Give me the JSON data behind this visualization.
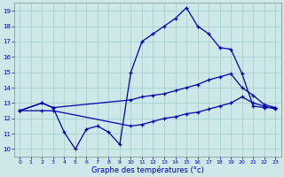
{
  "xlabel": "Graphe des températures (°c)",
  "xlim": [
    -0.5,
    23.5
  ],
  "ylim": [
    9.5,
    19.5
  ],
  "xticks": [
    0,
    1,
    2,
    3,
    4,
    5,
    6,
    7,
    8,
    9,
    10,
    11,
    12,
    13,
    14,
    15,
    16,
    17,
    18,
    19,
    20,
    21,
    22,
    23
  ],
  "yticks": [
    10,
    11,
    12,
    13,
    14,
    15,
    16,
    17,
    18,
    19
  ],
  "background_color": "#cce8e8",
  "grid_color": "#aacece",
  "line_color": "#0000aa",
  "line1_x": [
    0,
    2,
    3,
    4,
    5,
    6,
    7,
    8,
    9,
    10,
    11,
    12,
    13,
    14,
    15,
    16,
    17,
    18,
    19,
    20,
    21,
    22,
    23
  ],
  "line1_y": [
    12.5,
    13.0,
    12.7,
    11.1,
    10.0,
    11.3,
    11.5,
    11.1,
    10.3,
    15.0,
    17.0,
    17.5,
    18.0,
    18.5,
    19.2,
    18.0,
    17.5,
    16.6,
    16.5,
    14.9,
    12.8,
    12.7,
    12.7
  ],
  "line2_x": [
    0,
    2,
    3,
    10,
    11,
    12,
    13,
    14,
    15,
    16,
    17,
    18,
    19,
    20,
    21,
    22,
    23
  ],
  "line2_y": [
    12.5,
    13.0,
    12.7,
    13.2,
    13.4,
    13.5,
    13.6,
    13.8,
    14.0,
    14.2,
    14.5,
    14.7,
    14.9,
    14.0,
    13.5,
    12.9,
    12.7
  ],
  "line3_x": [
    0,
    2,
    3,
    10,
    11,
    12,
    13,
    14,
    15,
    16,
    17,
    18,
    19,
    20,
    21,
    22,
    23
  ],
  "line3_y": [
    12.5,
    12.5,
    12.5,
    11.5,
    11.6,
    11.8,
    12.0,
    12.1,
    12.3,
    12.4,
    12.6,
    12.8,
    13.0,
    13.4,
    13.0,
    12.8,
    12.6
  ]
}
